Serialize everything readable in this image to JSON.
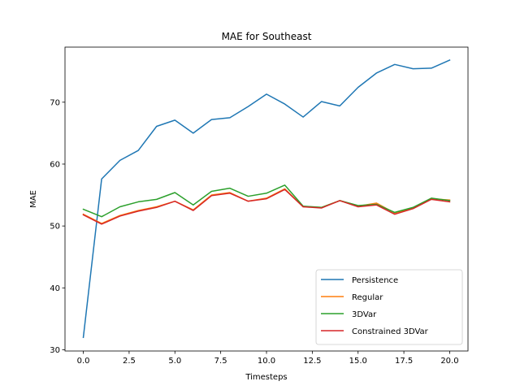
{
  "chart_data": {
    "type": "line",
    "title": "MAE for Southeast",
    "xlabel": "Timesteps",
    "ylabel": "MAE",
    "xlim": [
      -1,
      21
    ],
    "ylim": [
      29.8,
      78.9
    ],
    "xticks": [
      0,
      2.5,
      5,
      7.5,
      10,
      12.5,
      15,
      17.5,
      20
    ],
    "xtick_labels": [
      "0.0",
      "2.5",
      "5.0",
      "7.5",
      "10.0",
      "12.5",
      "15.0",
      "17.5",
      "20.0"
    ],
    "yticks": [
      30,
      40,
      50,
      60,
      70
    ],
    "ytick_labels": [
      "30",
      "40",
      "50",
      "60",
      "70"
    ],
    "grid": false,
    "legend_position": "lower-right",
    "x": [
      0,
      1,
      2,
      3,
      4,
      5,
      6,
      7,
      8,
      9,
      10,
      11,
      12,
      13,
      14,
      15,
      16,
      17,
      18,
      19,
      20
    ],
    "series": [
      {
        "name": "Persistence",
        "color": "#1f77b4",
        "values": [
          32.0,
          57.6,
          60.6,
          62.2,
          66.1,
          67.1,
          65.0,
          67.2,
          67.5,
          69.3,
          71.3,
          69.7,
          67.6,
          70.1,
          69.4,
          72.4,
          74.7,
          76.1,
          75.4,
          75.5,
          76.8
        ]
      },
      {
        "name": "Regular",
        "color": "#ff7f0e",
        "values": [
          51.9,
          50.4,
          51.7,
          52.5,
          53.1,
          54.0,
          52.6,
          55.0,
          55.4,
          54.0,
          54.5,
          56.0,
          53.1,
          53.0,
          54.1,
          53.2,
          53.7,
          52.1,
          52.9,
          54.4,
          54.2
        ]
      },
      {
        "name": "3DVar",
        "color": "#2ca02c",
        "values": [
          52.7,
          51.5,
          53.1,
          53.9,
          54.3,
          55.4,
          53.4,
          55.6,
          56.1,
          54.8,
          55.3,
          56.6,
          53.2,
          53.0,
          54.1,
          53.3,
          53.5,
          52.2,
          53.0,
          54.5,
          54.1
        ]
      },
      {
        "name": "Constrained 3DVar",
        "color": "#d62728",
        "values": [
          51.8,
          50.3,
          51.6,
          52.4,
          53.0,
          54.0,
          52.5,
          54.9,
          55.3,
          54.0,
          54.4,
          55.9,
          53.1,
          52.9,
          54.1,
          53.1,
          53.4,
          51.9,
          52.8,
          54.3,
          53.9
        ]
      }
    ]
  }
}
